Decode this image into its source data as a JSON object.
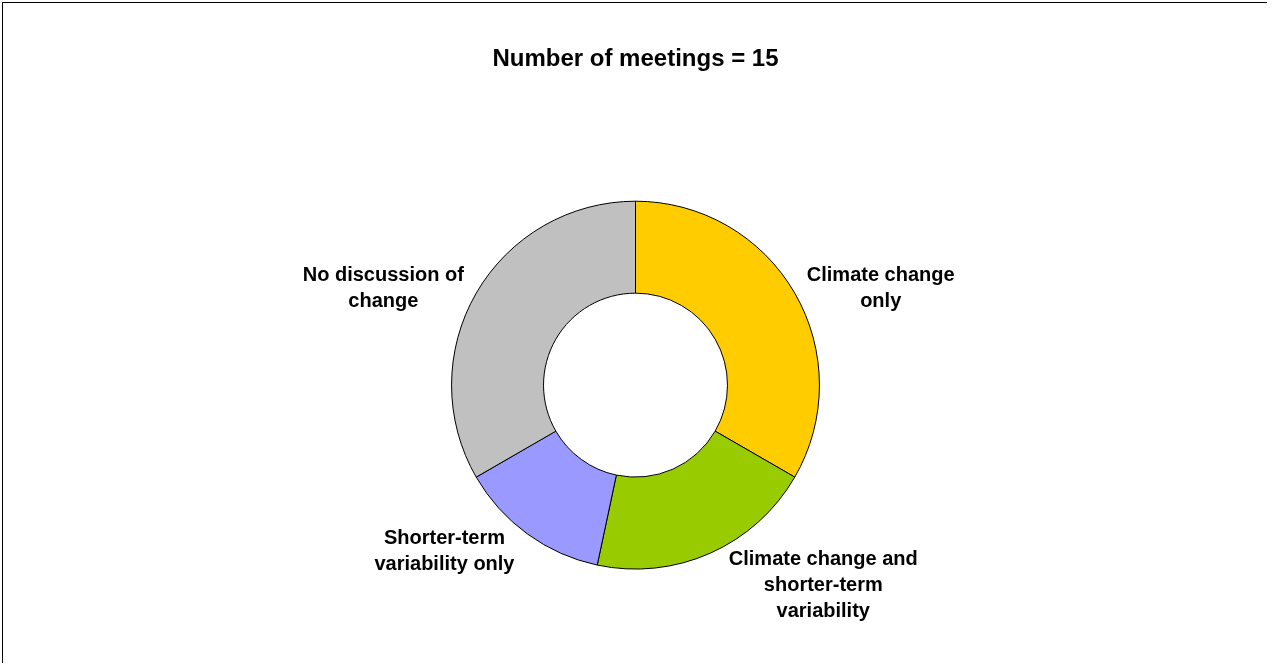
{
  "chart_data": {
    "type": "donut",
    "title": "Number of meetings = 15",
    "categories": [
      "Climate change only",
      "Climate change and shorter-term variability",
      "Shorter-term variability only",
      "No discussion of change"
    ],
    "values": [
      33.33,
      20,
      13.33,
      33.33
    ],
    "colors": [
      "#ffcc00",
      "#99cc00",
      "#9999ff",
      "#c0c0c0"
    ],
    "legend": false
  }
}
